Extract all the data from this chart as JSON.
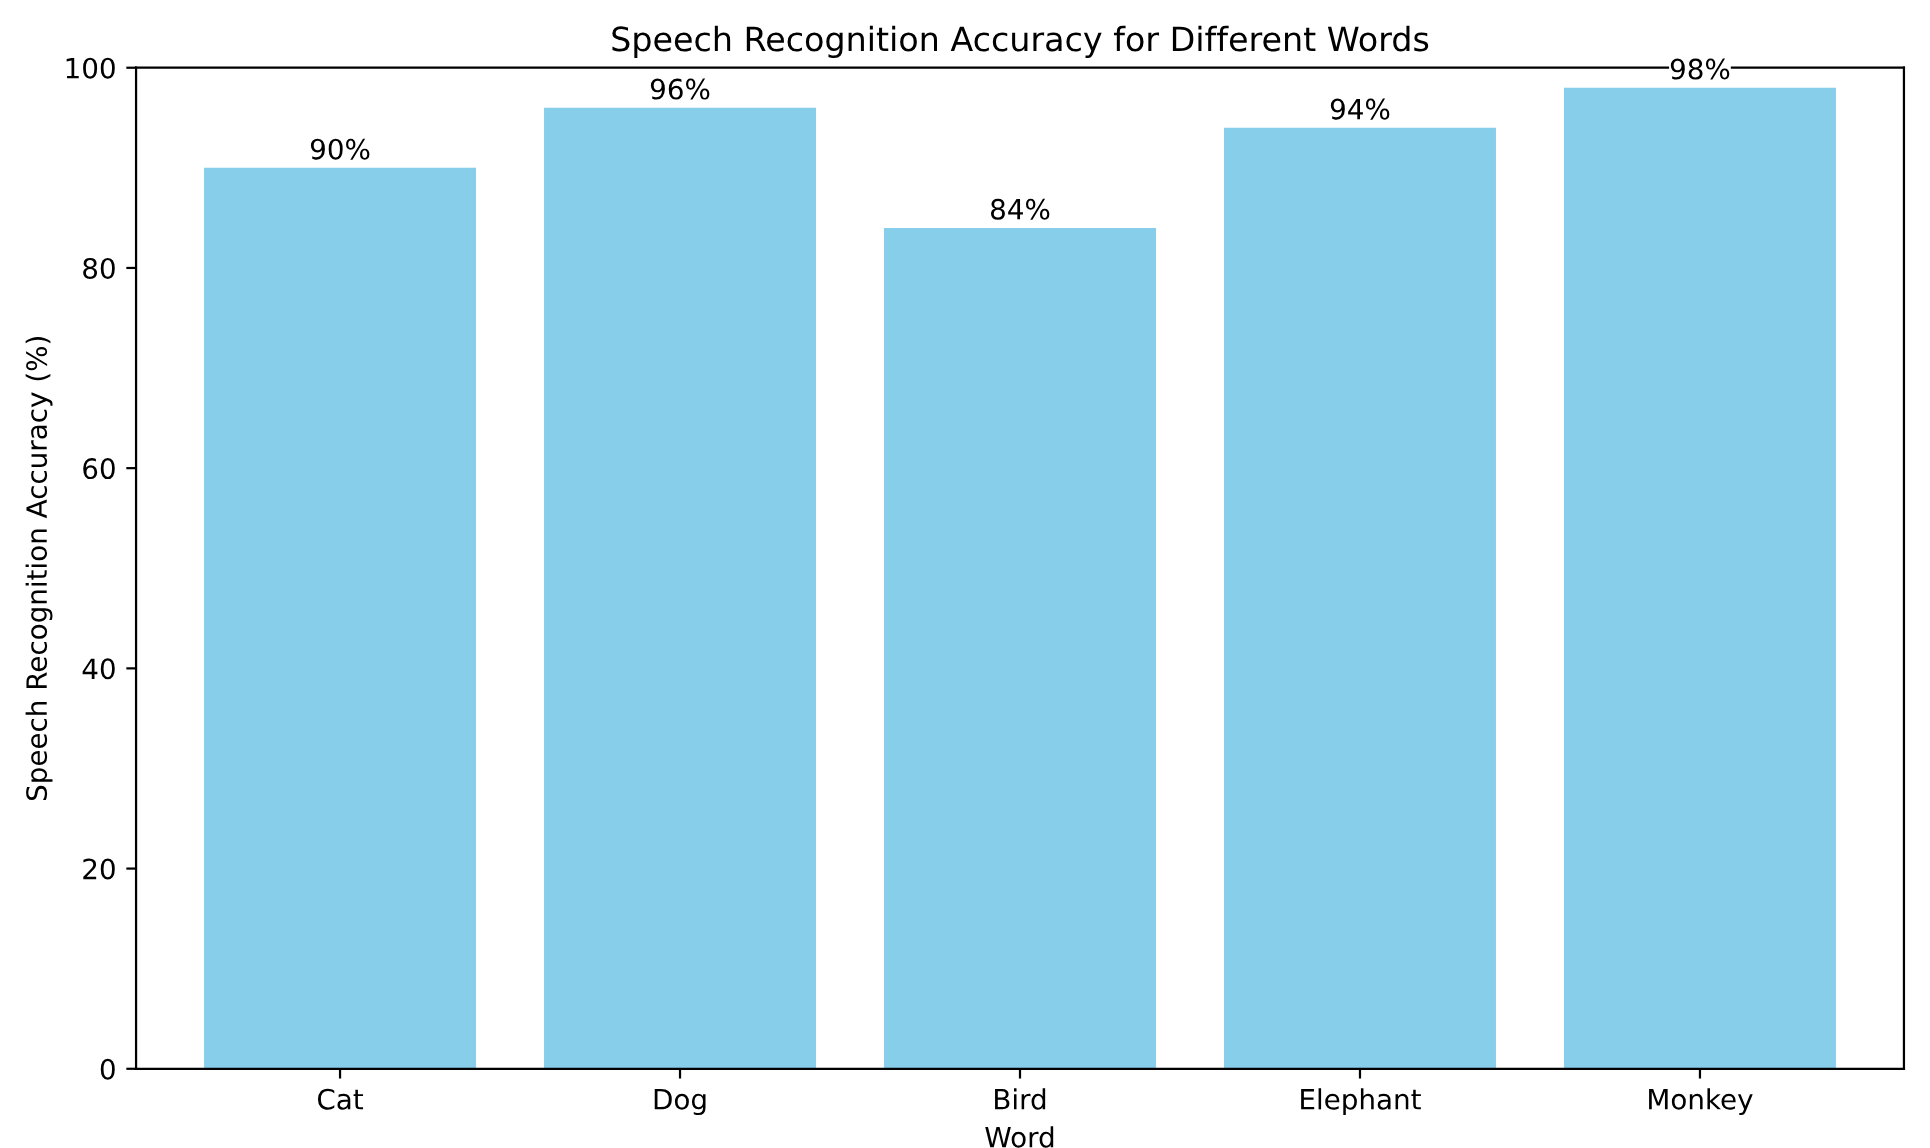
{
  "chart_data": {
    "type": "bar",
    "title": "Speech Recognition Accuracy for Different Words",
    "xlabel": "Word",
    "ylabel": "Speech Recognition Accuracy (%)",
    "categories": [
      "Cat",
      "Dog",
      "Bird",
      "Elephant",
      "Monkey"
    ],
    "values": [
      90,
      96,
      84,
      94,
      98
    ],
    "value_labels": [
      "90%",
      "96%",
      "84%",
      "94%",
      "98%"
    ],
    "color": "#87ceeb",
    "ylim": [
      0,
      100
    ],
    "yticks": [
      0,
      20,
      40,
      60,
      80,
      100
    ],
    "grid": false,
    "legend": false
  }
}
